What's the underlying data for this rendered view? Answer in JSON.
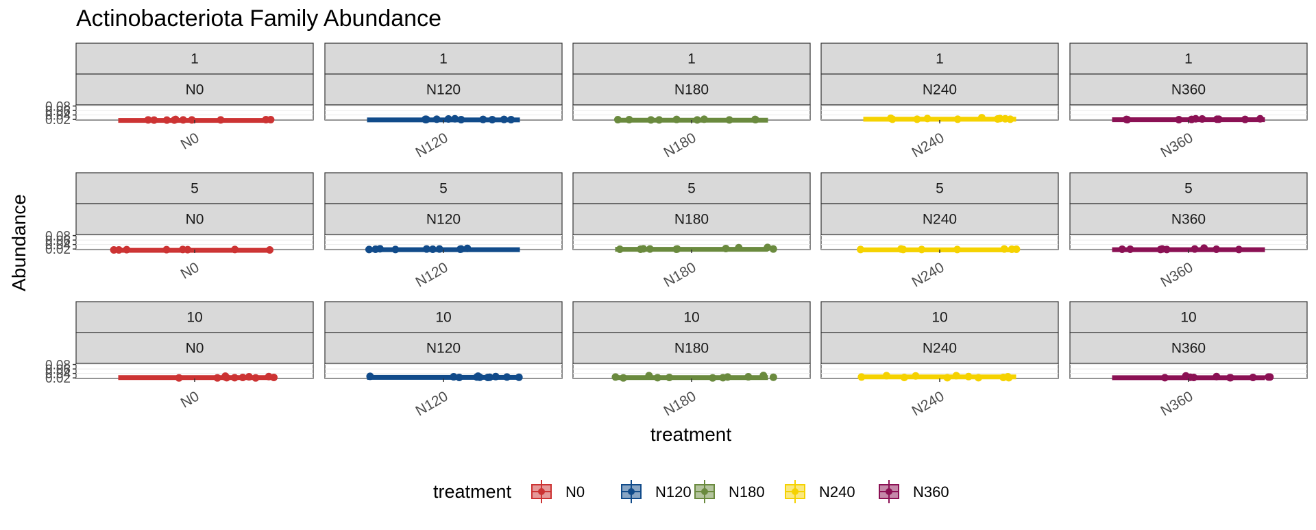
{
  "chart_data": {
    "type": "boxplot",
    "title": "Actinobacteriota Family Abundance",
    "xlabel": "treatment",
    "ylabel": "Abundance",
    "y_ticks": [
      "0.02",
      "0.04",
      "0.06",
      "0.08"
    ],
    "facet_rows": [
      "1",
      "5",
      "10"
    ],
    "facet_cols": [
      "N0",
      "N120",
      "N180",
      "N240",
      "N360"
    ],
    "legend": {
      "title": "treatment",
      "position": "bottom",
      "items": [
        {
          "label": "N0",
          "color": "#CC3333"
        },
        {
          "label": "N120",
          "color": "#114B8A"
        },
        {
          "label": "N180",
          "color": "#6A8A3E"
        },
        {
          "label": "N240",
          "color": "#F5D200"
        },
        {
          "label": "N360",
          "color": "#8B1154"
        }
      ]
    },
    "panels": [
      {
        "row": "1",
        "col": "N0",
        "points": [
          0.017,
          0.018,
          0.019,
          0.02,
          0.018,
          0.017,
          0.019,
          0.018,
          0.017,
          0.018
        ]
      },
      {
        "row": "1",
        "col": "N120",
        "points": [
          0.022,
          0.02,
          0.019,
          0.021,
          0.02,
          0.023,
          0.019,
          0.02,
          0.021,
          0.019,
          0.02,
          0.019
        ]
      },
      {
        "row": "1",
        "col": "N180",
        "points": [
          0.018,
          0.021,
          0.019,
          0.018,
          0.019,
          0.02,
          0.018,
          0.019,
          0.02,
          0.018
        ]
      },
      {
        "row": "1",
        "col": "N240",
        "points": [
          0.021,
          0.028,
          0.024,
          0.021,
          0.022,
          0.025,
          0.023,
          0.021,
          0.024,
          0.021
        ]
      },
      {
        "row": "1",
        "col": "N360",
        "points": [
          0.019,
          0.023,
          0.02,
          0.021,
          0.022,
          0.02,
          0.023,
          0.021,
          0.019,
          0.02
        ]
      },
      {
        "row": "5",
        "col": "N0",
        "points": [
          0.016,
          0.018,
          0.017,
          0.016,
          0.018,
          0.017,
          0.016,
          0.017
        ]
      },
      {
        "row": "5",
        "col": "N120",
        "points": [
          0.018,
          0.02,
          0.019,
          0.021,
          0.02,
          0.023,
          0.019,
          0.02,
          0.018,
          0.019
        ]
      },
      {
        "row": "5",
        "col": "N180",
        "points": [
          0.019,
          0.026,
          0.02,
          0.019,
          0.021,
          0.027,
          0.02,
          0.022,
          0.019,
          0.02
        ]
      },
      {
        "row": "5",
        "col": "N240",
        "points": [
          0.018,
          0.019,
          0.018,
          0.02,
          0.019,
          0.018,
          0.02,
          0.018
        ]
      },
      {
        "row": "5",
        "col": "N360",
        "points": [
          0.018,
          0.019,
          0.018,
          0.02,
          0.019,
          0.024,
          0.02,
          0.018,
          0.019
        ]
      },
      {
        "row": "10",
        "col": "N0",
        "points": [
          0.028,
          0.02,
          0.022,
          0.021,
          0.025,
          0.02,
          0.026,
          0.021,
          0.024,
          0.02,
          0.022
        ]
      },
      {
        "row": "10",
        "col": "N120",
        "points": [
          0.024,
          0.026,
          0.023,
          0.022,
          0.025,
          0.023,
          0.022,
          0.027,
          0.024,
          0.023,
          0.028
        ]
      },
      {
        "row": "10",
        "col": "N180",
        "points": [
          0.02,
          0.023,
          0.031,
          0.025,
          0.021,
          0.024,
          0.03,
          0.022,
          0.024,
          0.021,
          0.02
        ]
      },
      {
        "row": "10",
        "col": "N240",
        "points": [
          0.022,
          0.03,
          0.025,
          0.021,
          0.024,
          0.029,
          0.022,
          0.026,
          0.021,
          0.03,
          0.021
        ]
      },
      {
        "row": "10",
        "col": "N360",
        "points": [
          0.029,
          0.021,
          0.022,
          0.024,
          0.021,
          0.026,
          0.022,
          0.024,
          0.021,
          0.023
        ]
      }
    ]
  }
}
